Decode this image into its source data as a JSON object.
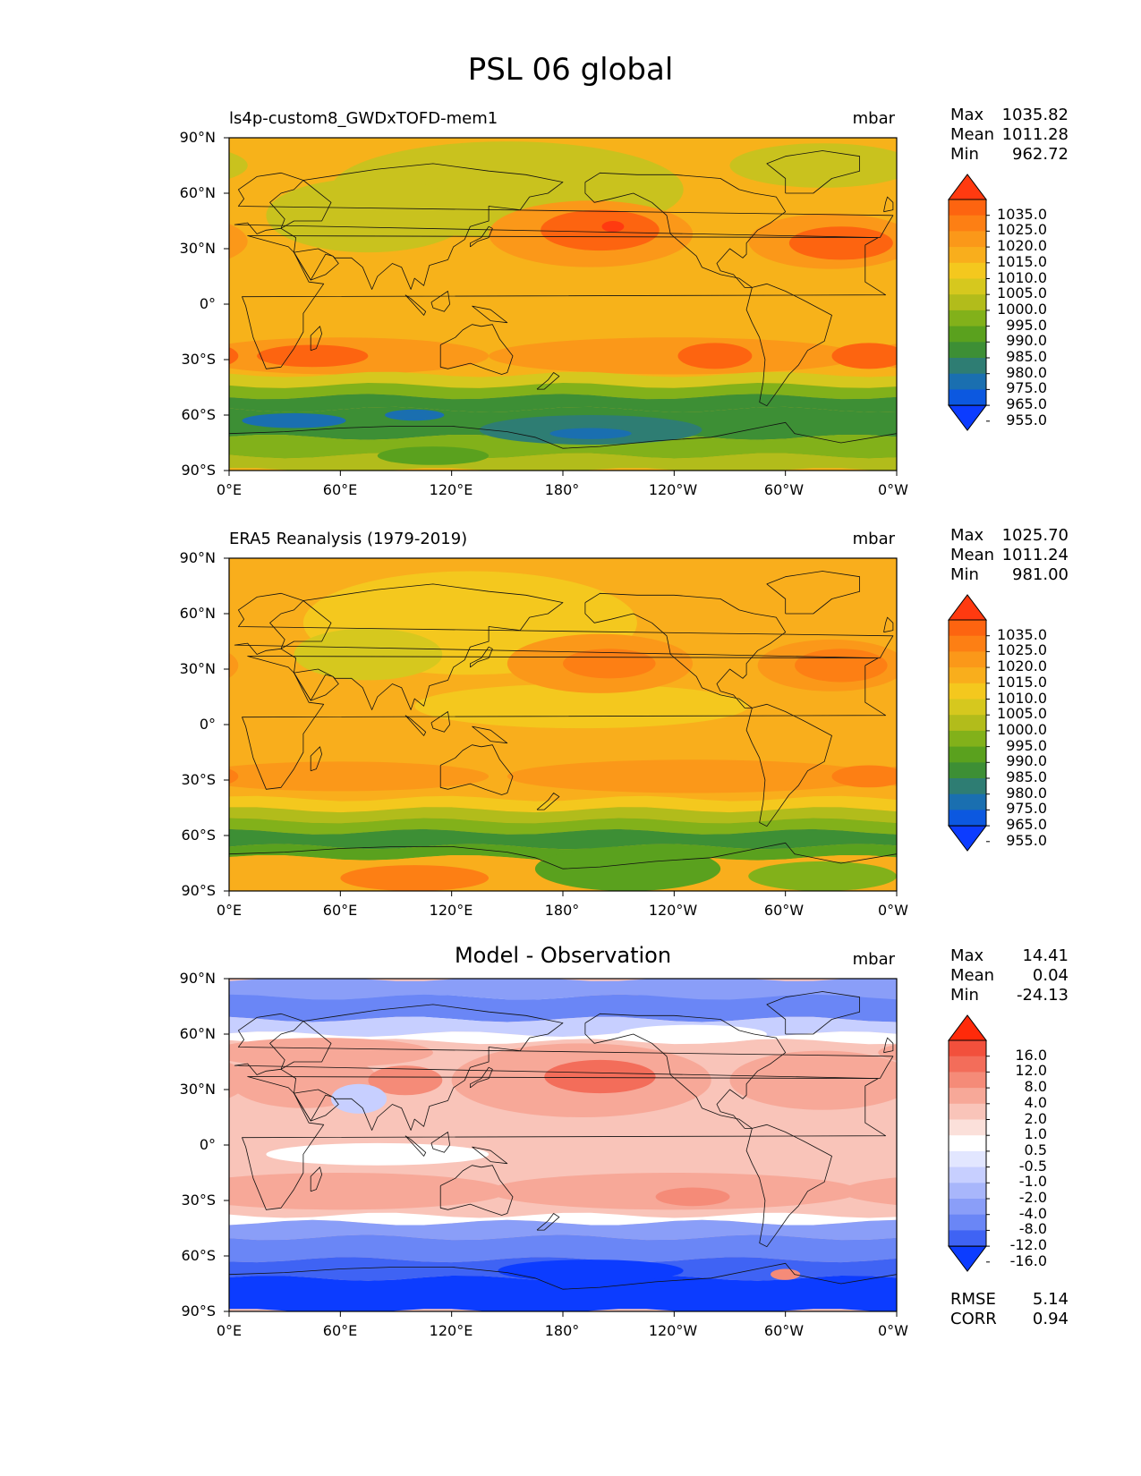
{
  "figure": {
    "title": "PSL 06 global"
  },
  "axes": {
    "y_ticks": [
      "90°N",
      "60°N",
      "30°N",
      "0°",
      "30°S",
      "60°S",
      "90°S"
    ],
    "x_ticks": [
      "0°E",
      "60°E",
      "120°E",
      "180°",
      "120°W",
      "60°W",
      "0°W"
    ]
  },
  "panels": [
    {
      "title": "ls4p-custom8_GWDxTOFD-mem1",
      "units": "mbar",
      "stats": [
        {
          "k": "Max",
          "v": "1035.82"
        },
        {
          "k": "Mean",
          "v": "1011.28"
        },
        {
          "k": "Min",
          "v": "962.72"
        }
      ],
      "colorbar": {
        "labels": [
          "1035.0",
          "1025.0",
          "1020.0",
          "1015.0",
          "1010.0",
          "1005.0",
          "1000.0",
          "995.0",
          "990.0",
          "985.0",
          "980.0",
          "975.0",
          "965.0",
          "955.0"
        ],
        "colors": [
          "#ff3a10",
          "#fd6410",
          "#fd7f14",
          "#fb9819",
          "#f9ae1c",
          "#f4c81e",
          "#d6c81e",
          "#b2bc1b",
          "#82b11a",
          "#5aa11e",
          "#3d8f35",
          "#2e7d73",
          "#1a6fb0",
          "#0c58e0",
          "#0c3cff"
        ]
      },
      "fields": {
        "base": "#f7b21a",
        "blobs": [
          {
            "lon": 150,
            "lat": 62,
            "rx": 95,
            "ry": 26,
            "fill": "#c9c21e"
          },
          {
            "lon": 75,
            "lat": 48,
            "rx": 55,
            "ry": 20,
            "fill": "#c9c21e"
          },
          {
            "lon": 320,
            "lat": 75,
            "rx": 50,
            "ry": 12,
            "fill": "#c9c21e"
          },
          {
            "lon": 195,
            "lat": 38,
            "rx": 55,
            "ry": 18,
            "fill": "#fb9819"
          },
          {
            "lon": 200,
            "lat": 40,
            "rx": 32,
            "ry": 11,
            "fill": "#fd6410"
          },
          {
            "lon": 207,
            "lat": 42,
            "rx": 6,
            "ry": 3,
            "fill": "#ff3a10"
          },
          {
            "lon": 325,
            "lat": 34,
            "rx": 45,
            "ry": 15,
            "fill": "#fb9819"
          },
          {
            "lon": 330,
            "lat": 33,
            "rx": 28,
            "ry": 9,
            "fill": "#fd6410"
          },
          {
            "lon": 60,
            "lat": -28,
            "rx": 80,
            "ry": 10,
            "fill": "#fb9819"
          },
          {
            "lon": 240,
            "lat": -28,
            "rx": 100,
            "ry": 10,
            "fill": "#fb9819"
          },
          {
            "lon": 262,
            "lat": -28,
            "rx": 20,
            "ry": 7,
            "fill": "#fd6410"
          },
          {
            "lon": 345,
            "lat": -28,
            "rx": 20,
            "ry": 7,
            "fill": "#fd6410"
          },
          {
            "lon": 45,
            "lat": -28,
            "rx": 30,
            "ry": 6,
            "fill": "#fd6410"
          }
        ],
        "bands": [
          {
            "lat1": -38,
            "lat2": -44,
            "fill": "#d6c81e"
          },
          {
            "lat1": -44,
            "lat2": -50,
            "fill": "#82b11a"
          },
          {
            "lat1": -50,
            "lat2": -57,
            "fill": "#3d8f35"
          },
          {
            "lat1": -57,
            "lat2": -72,
            "fill": "#3d8f35"
          },
          {
            "lat1": -72,
            "lat2": -82,
            "fill": "#82b11a"
          },
          {
            "lat1": -82,
            "lat2": -90,
            "fill": "#b2bc1b"
          }
        ],
        "blobs2": [
          {
            "lon": 35,
            "lat": -63,
            "rx": 28,
            "ry": 4,
            "fill": "#1a6fb0"
          },
          {
            "lon": 100,
            "lat": -60,
            "rx": 16,
            "ry": 3,
            "fill": "#1a6fb0"
          },
          {
            "lon": 195,
            "lat": -68,
            "rx": 60,
            "ry": 8,
            "fill": "#2e7d73"
          },
          {
            "lon": 195,
            "lat": -70,
            "rx": 22,
            "ry": 3,
            "fill": "#1a6fb0"
          },
          {
            "lon": 110,
            "lat": -82,
            "rx": 30,
            "ry": 5,
            "fill": "#5aa11e"
          }
        ]
      }
    },
    {
      "title": "ERA5 Reanalysis (1979-2019)",
      "units": "mbar",
      "stats": [
        {
          "k": "Max",
          "v": "1025.70"
        },
        {
          "k": "Mean",
          "v": "1011.24"
        },
        {
          "k": "Min",
          "v": "981.00"
        }
      ],
      "colorbar": {
        "labels": [
          "1035.0",
          "1025.0",
          "1020.0",
          "1015.0",
          "1010.0",
          "1005.0",
          "1000.0",
          "995.0",
          "990.0",
          "985.0",
          "980.0",
          "975.0",
          "965.0",
          "955.0"
        ],
        "colors": [
          "#ff3a10",
          "#fd6410",
          "#fd7f14",
          "#fb9819",
          "#f9ae1c",
          "#f4c81e",
          "#d6c81e",
          "#b2bc1b",
          "#82b11a",
          "#5aa11e",
          "#3d8f35",
          "#2e7d73",
          "#1a6fb0",
          "#0c58e0",
          "#0c3cff"
        ]
      },
      "fields": {
        "base": "#f9ae1c",
        "blobs": [
          {
            "lon": 130,
            "lat": 55,
            "rx": 90,
            "ry": 28,
            "fill": "#f4c81e"
          },
          {
            "lon": 75,
            "lat": 38,
            "rx": 40,
            "ry": 14,
            "fill": "#d6c81e"
          },
          {
            "lon": 190,
            "lat": 10,
            "rx": 90,
            "ry": 12,
            "fill": "#f4c81e"
          },
          {
            "lon": 200,
            "lat": 33,
            "rx": 50,
            "ry": 16,
            "fill": "#fb9819"
          },
          {
            "lon": 205,
            "lat": 33,
            "rx": 25,
            "ry": 8,
            "fill": "#fd7f14"
          },
          {
            "lon": 325,
            "lat": 32,
            "rx": 40,
            "ry": 14,
            "fill": "#fb9819"
          },
          {
            "lon": 330,
            "lat": 32,
            "rx": 25,
            "ry": 9,
            "fill": "#fd7f14"
          },
          {
            "lon": 60,
            "lat": -28,
            "rx": 80,
            "ry": 8,
            "fill": "#fb9819"
          },
          {
            "lon": 250,
            "lat": -28,
            "rx": 100,
            "ry": 9,
            "fill": "#fb9819"
          },
          {
            "lon": 345,
            "lat": -28,
            "rx": 20,
            "ry": 6,
            "fill": "#fd7f14"
          }
        ],
        "bands": [
          {
            "lat1": -40,
            "lat2": -46,
            "fill": "#f4c81e"
          },
          {
            "lat1": -46,
            "lat2": -52,
            "fill": "#b2bc1b"
          },
          {
            "lat1": -52,
            "lat2": -58,
            "fill": "#82b11a"
          },
          {
            "lat1": -58,
            "lat2": -66,
            "fill": "#3d8f35"
          },
          {
            "lat1": -66,
            "lat2": -72,
            "fill": "#5aa11e"
          },
          {
            "lat1": -72,
            "lat2": -90,
            "fill": "#f9ae1c"
          }
        ],
        "blobs2": [
          {
            "lon": 100,
            "lat": -83,
            "rx": 40,
            "ry": 7,
            "fill": "#fd7f14"
          },
          {
            "lon": 215,
            "lat": -78,
            "rx": 50,
            "ry": 12,
            "fill": "#5aa11e"
          },
          {
            "lon": 320,
            "lat": -82,
            "rx": 40,
            "ry": 8,
            "fill": "#82b11a"
          }
        ]
      }
    },
    {
      "title": "Model - Observation",
      "units": "mbar",
      "stats": [
        {
          "k": "Max",
          "v": "14.41"
        },
        {
          "k": "Mean",
          "v": "0.04"
        },
        {
          "k": "Min",
          "v": "-24.13"
        }
      ],
      "colorbar": {
        "labels": [
          "16.0",
          "12.0",
          "8.0",
          "4.0",
          "2.0",
          "1.0",
          "0.5",
          "-0.5",
          "-1.0",
          "-2.0",
          "-4.0",
          "-8.0",
          "-12.0",
          "-16.0"
        ],
        "colors": [
          "#ff2a0a",
          "#f2503c",
          "#f36d5a",
          "#f58b78",
          "#f7a898",
          "#f9c4b9",
          "#fbe0da",
          "#ffffff",
          "#e2e6ff",
          "#c7cfff",
          "#a8b6fb",
          "#8a9ef8",
          "#6a86f6",
          "#3f63f4",
          "#0c3cff"
        ]
      },
      "fields": {
        "base": "#f9c4b9",
        "blobs": [
          {
            "lon": 190,
            "lat": 35,
            "rx": 70,
            "ry": 20,
            "fill": "#f7a898"
          },
          {
            "lon": 200,
            "lat": 37,
            "rx": 30,
            "ry": 9,
            "fill": "#f36d5a"
          },
          {
            "lon": 320,
            "lat": 35,
            "rx": 50,
            "ry": 16,
            "fill": "#f7a898"
          },
          {
            "lon": 40,
            "lat": 35,
            "rx": 40,
            "ry": 15,
            "fill": "#f7a898"
          },
          {
            "lon": 95,
            "lat": 35,
            "rx": 20,
            "ry": 8,
            "fill": "#f58b78"
          },
          {
            "lon": 70,
            "lat": 25,
            "rx": 15,
            "ry": 8,
            "fill": "#c7cfff"
          },
          {
            "lon": 80,
            "lat": -5,
            "rx": 60,
            "ry": 6,
            "fill": "#ffffff"
          },
          {
            "lon": 60,
            "lat": -25,
            "rx": 90,
            "ry": 10,
            "fill": "#f7a898"
          },
          {
            "lon": 240,
            "lat": -25,
            "rx": 100,
            "ry": 10,
            "fill": "#f7a898"
          },
          {
            "lon": 250,
            "lat": -28,
            "rx": 20,
            "ry": 5,
            "fill": "#f58b78"
          },
          {
            "lon": 140,
            "lat": 75,
            "rx": 60,
            "ry": 8,
            "fill": "#ffffff"
          },
          {
            "lon": 30,
            "lat": 80,
            "rx": 80,
            "ry": 8,
            "fill": "#a8b6fb"
          },
          {
            "lon": 300,
            "lat": 80,
            "rx": 80,
            "ry": 8,
            "fill": "#8a9ef8"
          }
        ],
        "bands": [
          {
            "lat1": 90,
            "lat2": 80,
            "fill": "#8a9ef8"
          },
          {
            "lat1": 80,
            "lat2": 68,
            "fill": "#6a86f6"
          },
          {
            "lat1": 68,
            "lat2": 60,
            "fill": "#c7cfff"
          },
          {
            "lat1": 60,
            "lat2": 56,
            "fill": "#ffffff"
          },
          {
            "lat1": -38,
            "lat2": -42,
            "fill": "#ffffff"
          },
          {
            "lat1": -42,
            "lat2": -50,
            "fill": "#8a9ef8"
          },
          {
            "lat1": -50,
            "lat2": -62,
            "fill": "#6a86f6"
          },
          {
            "lat1": -62,
            "lat2": -72,
            "fill": "#3f63f4"
          },
          {
            "lat1": -72,
            "lat2": -90,
            "fill": "#0c3cff"
          }
        ],
        "blobs2": [
          {
            "lon": 50,
            "lat": 50,
            "rx": 60,
            "ry": 8,
            "fill": "#f7a898"
          },
          {
            "lon": 250,
            "lat": 60,
            "rx": 40,
            "ry": 5,
            "fill": "#ffffff"
          },
          {
            "lon": 195,
            "lat": -68,
            "rx": 50,
            "ry": 6,
            "fill": "#0c3cff"
          },
          {
            "lon": 300,
            "lat": -70,
            "rx": 8,
            "ry": 3,
            "fill": "#f58b78"
          }
        ]
      }
    }
  ],
  "metrics": [
    {
      "k": "RMSE",
      "v": "5.14"
    },
    {
      "k": "CORR",
      "v": "0.94"
    }
  ]
}
